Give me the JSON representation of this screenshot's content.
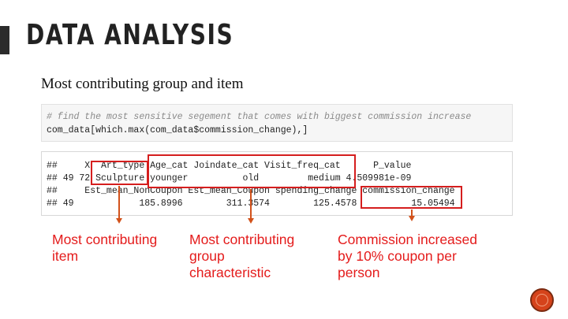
{
  "slide": {
    "title": "DATA ANALYSIS",
    "subtitle": "Most contributing group and item"
  },
  "code_cell": {
    "comment": "# find the most sensitive segement that comes with biggest commission increase",
    "code": "com_data[which.max(com_data$commission_change),]"
  },
  "output": {
    "lines": [
      "##     X  Art_type Age_cat Joindate_cat Visit_freq_cat      P_value",
      "## 49 72 Sculpture younger          old         medium 4.509981e-09",
      "##     Est_mean_NonCoupon Est_mean_Coupon spending_change commission_change",
      "## 49            185.8996        311.3574        125.4578          15.05494"
    ]
  },
  "annotations": {
    "item": [
      "Most contributing",
      "item"
    ],
    "group": [
      "Most contributing",
      "group",
      "characteristic"
    ],
    "commission": [
      "Commission increased",
      "by 10% coupon per",
      "person"
    ]
  },
  "colors": {
    "highlight": "#d51e1e",
    "annotation_text": "#e41b1b",
    "arrow": "#d2521b",
    "nav_button": "#d5431b"
  },
  "nav": {
    "icon": "circle-next-icon"
  }
}
